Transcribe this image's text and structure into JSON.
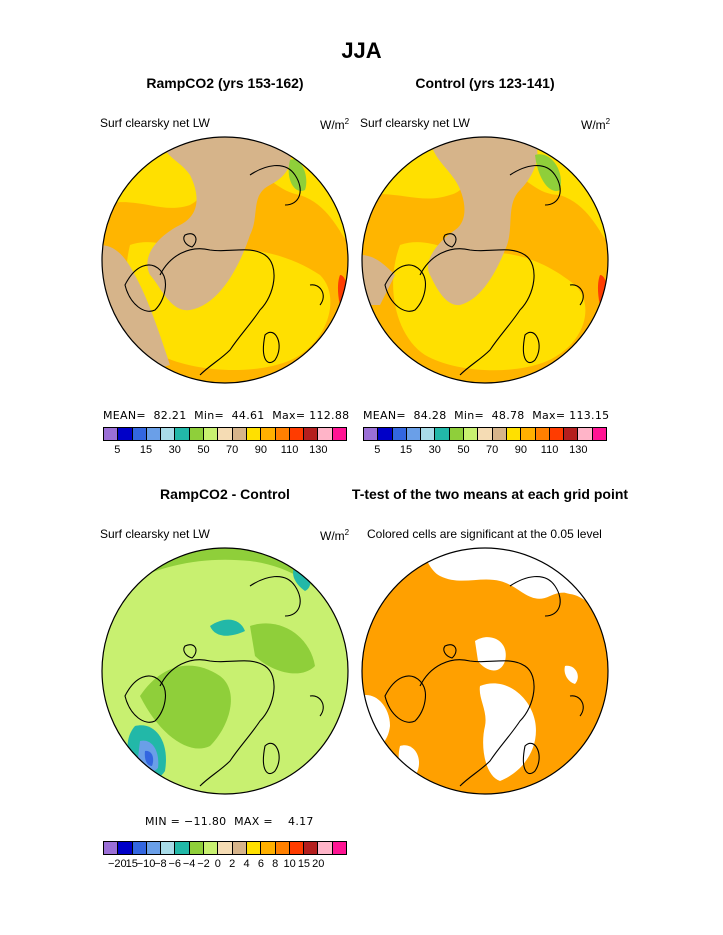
{
  "page_title": "JJA",
  "panels": [
    {
      "title": "RampCO2 (yrs 153-162)",
      "field": "Surf clearsky net LW",
      "units_base": "W/m",
      "units_exp": "2",
      "stats": "MEAN=  82.21  Min=  44.61  Max= 112.88",
      "colorbar": [
        "#9b6fd6",
        "#0000c8",
        "#3366e0",
        "#6a9fe8",
        "#a8dbe8",
        "#22b8a8",
        "#8fcf3a",
        "#c8f070",
        "#f5dcb4",
        "#d6b48a",
        "#ffe000",
        "#ffb000",
        "#ff8000",
        "#ff3c00",
        "#b41e1e",
        "#ffb4c8",
        "#ff1493"
      ],
      "tick_labels": [
        "5",
        "15",
        "30",
        "50",
        "70",
        "90",
        "110",
        "130"
      ],
      "base_color": "#ffe000",
      "land_color": "#d6b48a"
    },
    {
      "title": "Control (yrs 123-141)",
      "field": "Surf clearsky net LW",
      "units_base": "W/m",
      "units_exp": "2",
      "stats": "MEAN=  84.28  Min=  48.78  Max= 113.15",
      "colorbar": [
        "#9b6fd6",
        "#0000c8",
        "#3366e0",
        "#6a9fe8",
        "#a8dbe8",
        "#22b8a8",
        "#8fcf3a",
        "#c8f070",
        "#f5dcb4",
        "#d6b48a",
        "#ffe000",
        "#ffb000",
        "#ff8000",
        "#ff3c00",
        "#b41e1e",
        "#ffb4c8",
        "#ff1493"
      ],
      "tick_labels": [
        "5",
        "15",
        "30",
        "50",
        "70",
        "90",
        "110",
        "130"
      ],
      "base_color": "#ffe000",
      "land_color": "#d6b48a"
    },
    {
      "title": "RampCO2 - Control",
      "field": "Surf clearsky net LW",
      "units_base": "W/m",
      "units_exp": "2",
      "stats": "MIN = −11.80  MAX =    4.17",
      "colorbar": [
        "#9b6fd6",
        "#0000c8",
        "#3366e0",
        "#6a9fe8",
        "#a8dbe8",
        "#22b8a8",
        "#8fcf3a",
        "#c8f070",
        "#f5dcb4",
        "#d6b48a",
        "#ffe000",
        "#ffb000",
        "#ff8000",
        "#ff3c00",
        "#b41e1e",
        "#ffb4c8",
        "#ff1493"
      ],
      "tick_labels": [
        "−20",
        "15",
        "−10",
        "−8",
        "−6",
        "−4",
        "−2",
        "0",
        "2",
        "4",
        "6",
        "8",
        "10",
        "15",
        "20"
      ],
      "base_color": "#c8f070",
      "land_color": "#8fcf3a"
    },
    {
      "title": "T-test of the two means at each grid point",
      "field": "Colored cells are significant at the 0.05 level",
      "base_color": "#ffa000",
      "land_color": "#ffffff"
    }
  ]
}
